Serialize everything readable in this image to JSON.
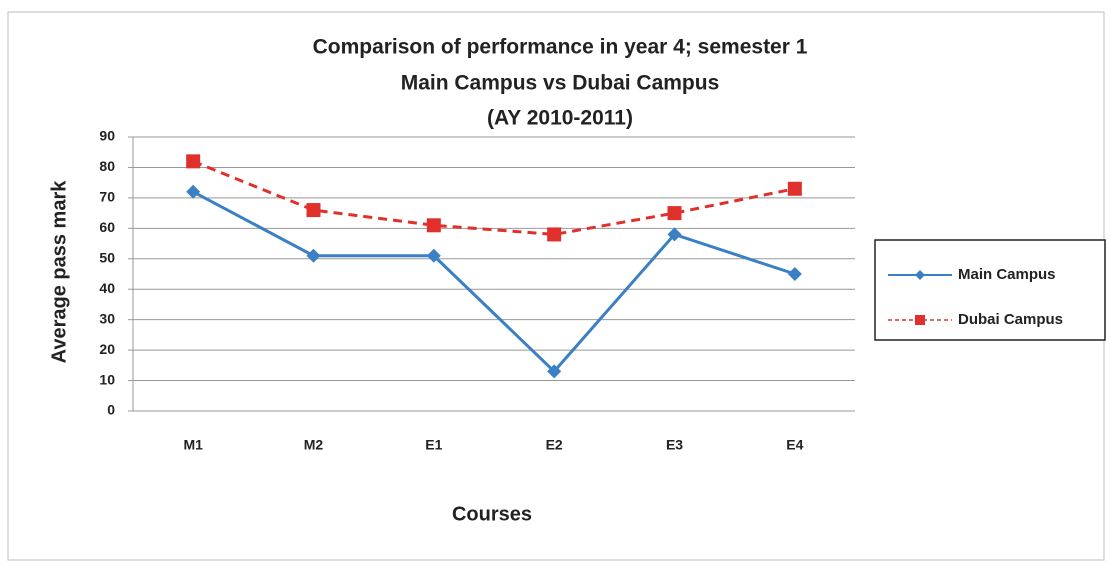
{
  "chart_data": {
    "type": "line",
    "title_lines": [
      "Comparison of performance in year 4; semester 1",
      "Main Campus vs Dubai  Campus",
      "(AY 2010-2011)"
    ],
    "x_label": "Courses",
    "y_label": "Average pass mark",
    "categories": [
      "M1",
      "M2",
      "E1",
      "E2",
      "E3",
      "E4"
    ],
    "series": [
      {
        "name": "Main Campus",
        "color": "#3b7fc4",
        "dashed": false,
        "marker": "diamond",
        "values": [
          72,
          51,
          51,
          13,
          58,
          45
        ]
      },
      {
        "name": "Dubai Campus",
        "color": "#e0302c",
        "dashed": true,
        "marker": "square",
        "values": [
          82,
          66,
          61,
          58,
          65,
          73
        ]
      }
    ],
    "ylim": [
      0,
      90
    ],
    "yticks": [
      0,
      10,
      20,
      30,
      40,
      50,
      60,
      70,
      80,
      90
    ],
    "grid": true,
    "legend": "right"
  }
}
